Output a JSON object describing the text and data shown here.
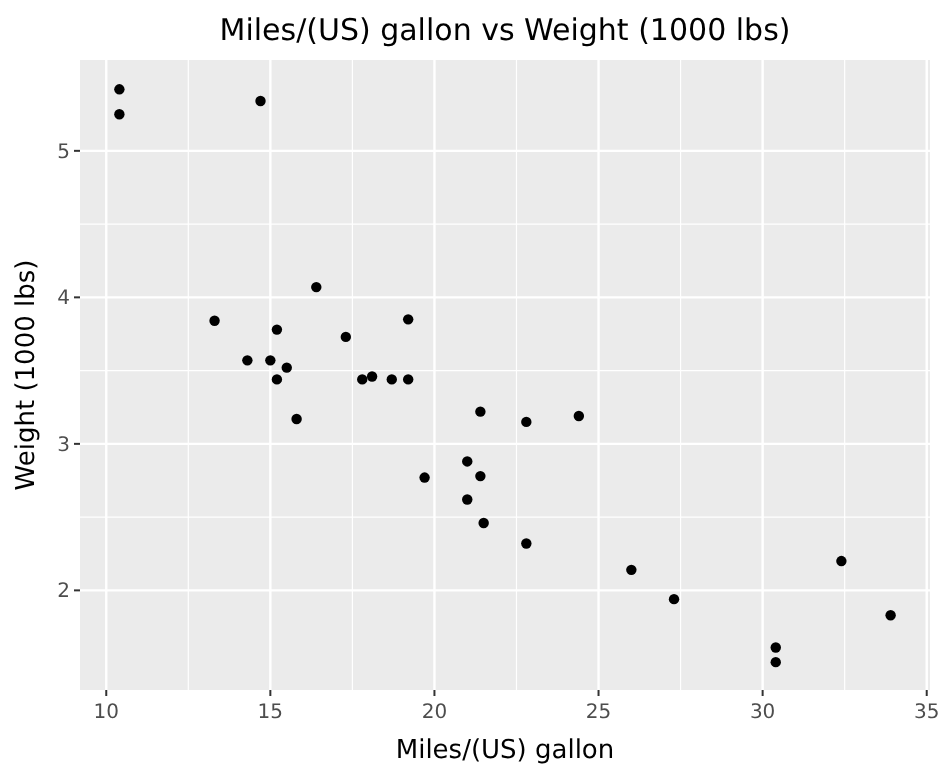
{
  "chart_data": {
    "type": "scatter",
    "title": "Miles/(US) gallon vs Weight (1000 lbs)",
    "xlabel": "Miles/(US) gallon",
    "ylabel": "Weight (1000 lbs)",
    "x": [
      21.0,
      21.0,
      22.8,
      21.4,
      18.7,
      18.1,
      14.3,
      24.4,
      22.8,
      19.2,
      17.8,
      16.4,
      17.3,
      15.2,
      10.4,
      10.4,
      14.7,
      32.4,
      30.4,
      33.9,
      21.5,
      15.5,
      15.2,
      13.3,
      19.2,
      27.3,
      26.0,
      30.4,
      15.8,
      19.7,
      15.0,
      21.4
    ],
    "values": [
      2.62,
      2.88,
      2.32,
      3.22,
      3.44,
      3.46,
      3.57,
      3.19,
      3.15,
      3.44,
      3.44,
      4.07,
      3.73,
      3.78,
      5.25,
      5.42,
      5.34,
      2.2,
      1.61,
      1.83,
      2.46,
      3.52,
      3.44,
      3.84,
      3.85,
      1.94,
      2.14,
      1.51,
      3.17,
      2.77,
      3.57,
      2.78
    ],
    "color": "#000000",
    "marker": "circle",
    "xlim": [
      9.2,
      35.1
    ],
    "ylim": [
      1.32,
      5.62
    ],
    "xticks": [
      10,
      15,
      20,
      25,
      30,
      35
    ],
    "yticks": [
      2,
      3,
      4,
      5
    ],
    "grid": true
  }
}
